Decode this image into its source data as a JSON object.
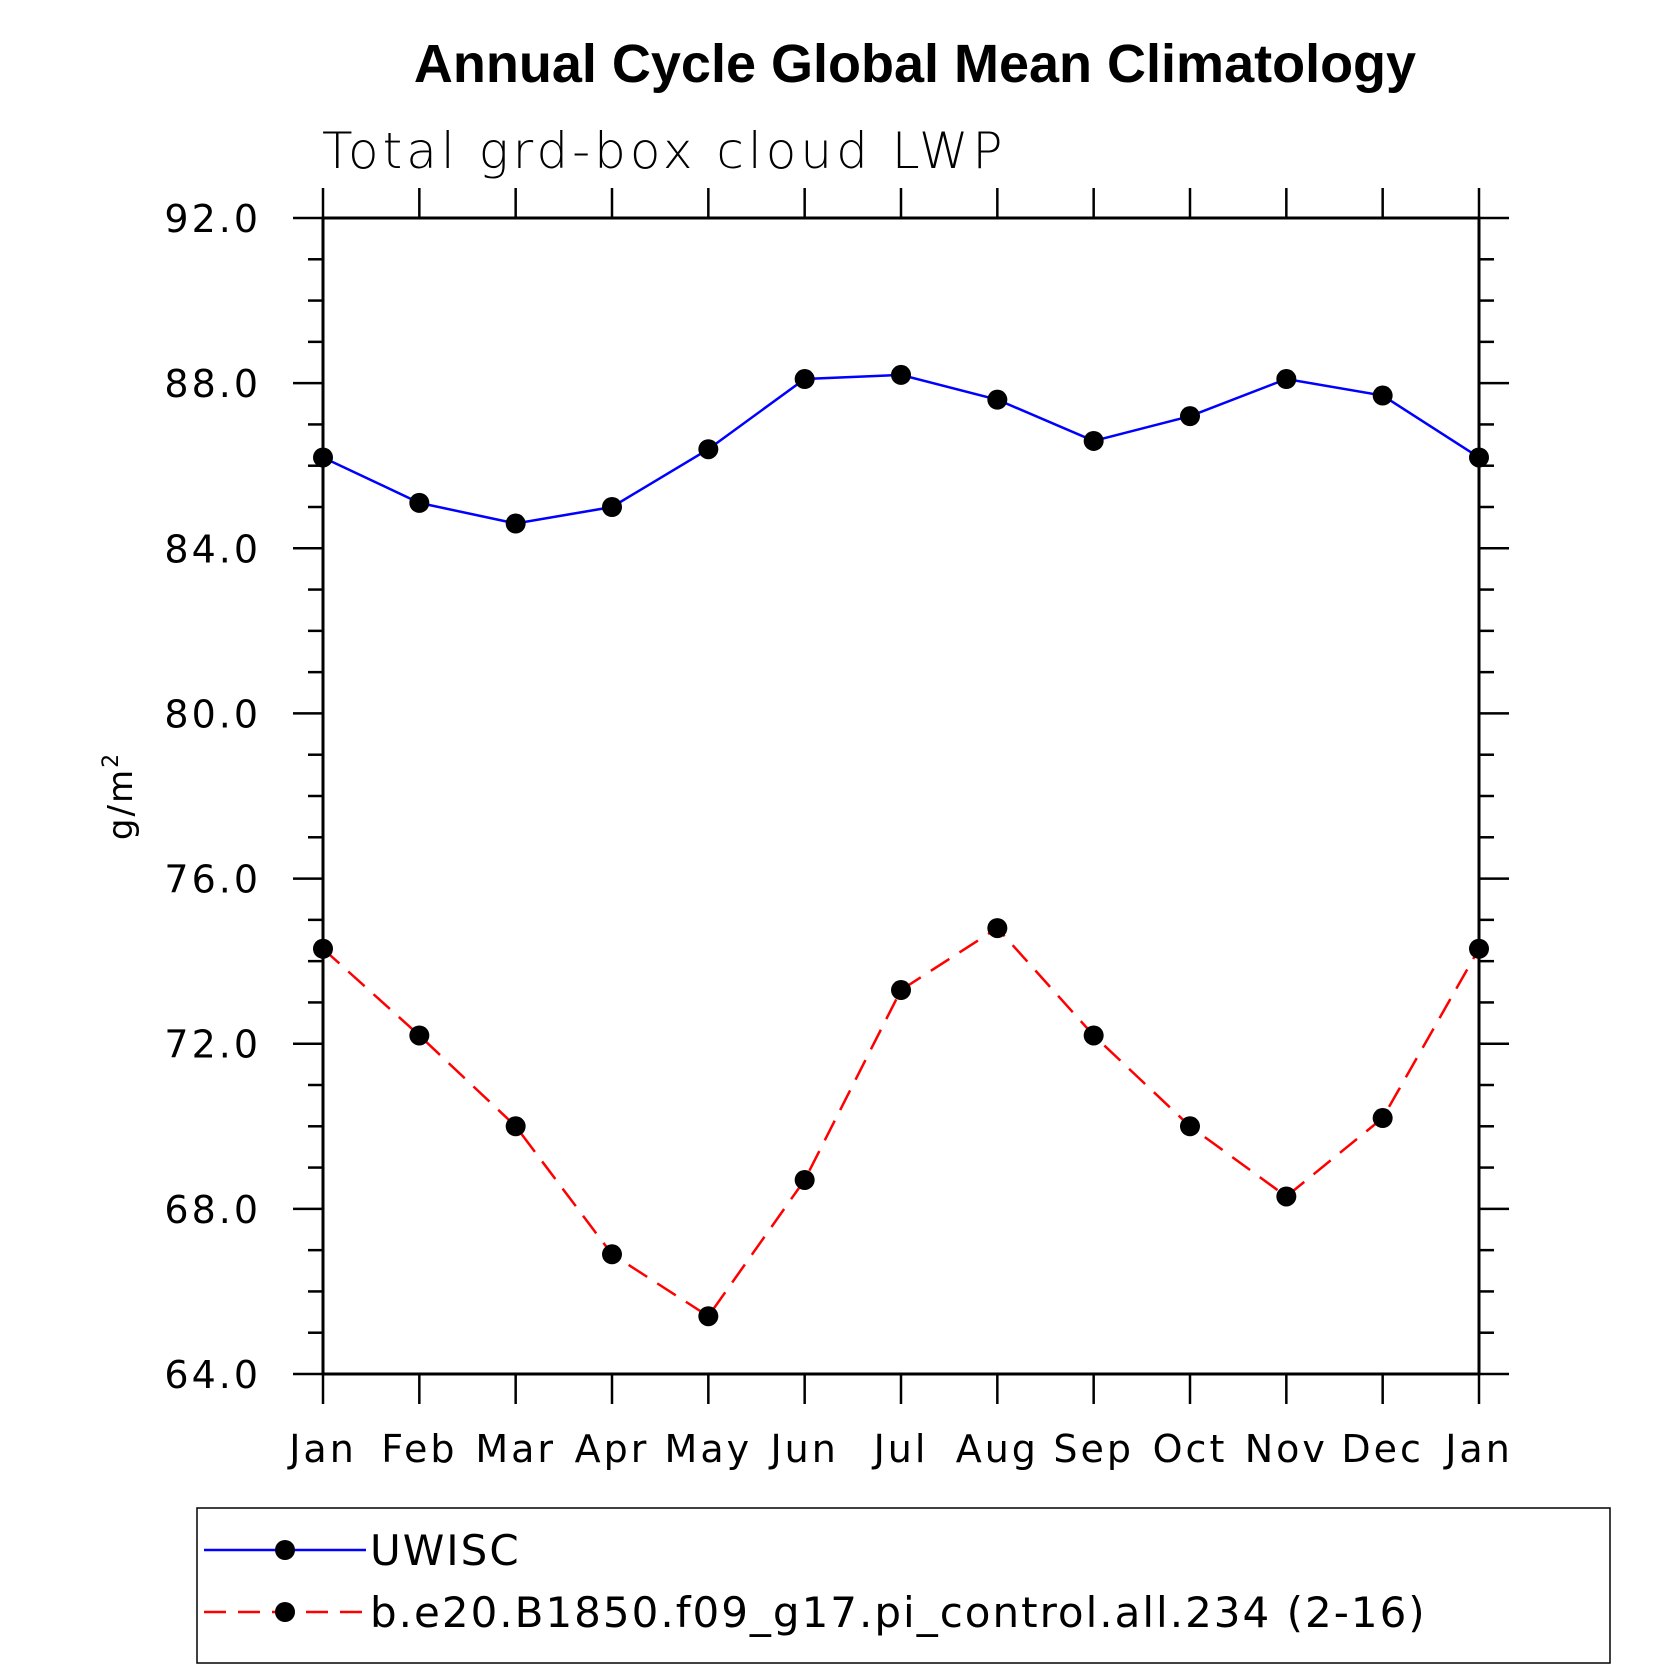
{
  "chart_data": {
    "type": "line",
    "title": "Annual Cycle Global Mean Climatology",
    "subtitle": "Total grd-box cloud LWP",
    "ylabel": "g/m",
    "ylabel_sup": "2",
    "categories": [
      "Jan",
      "Feb",
      "Mar",
      "Apr",
      "May",
      "Jun",
      "Jul",
      "Aug",
      "Sep",
      "Oct",
      "Nov",
      "Dec",
      "Jan"
    ],
    "ylim": [
      64.0,
      92.0
    ],
    "yticks": [
      "64.0",
      "68.0",
      "72.0",
      "76.0",
      "80.0",
      "84.0",
      "88.0",
      "92.0"
    ],
    "yminor_step": 1.0,
    "grid": false,
    "legend_position": "bottom",
    "series": [
      {
        "name": "UWISC",
        "color": "#0000ff",
        "line_style": "solid",
        "marker": "filled-circle",
        "values": [
          86.2,
          85.1,
          84.6,
          85.0,
          86.4,
          88.1,
          88.2,
          87.6,
          86.6,
          87.2,
          88.1,
          87.7,
          86.2
        ]
      },
      {
        "name": "b.e20.B1850.f09_g17.pi_control.all.234 (2-16)",
        "color": "#ff0000",
        "line_style": "dashed",
        "marker": "filled-circle",
        "values": [
          74.3,
          72.2,
          70.0,
          66.9,
          65.4,
          68.7,
          73.3,
          74.8,
          72.2,
          70.0,
          68.3,
          70.2,
          74.3
        ]
      }
    ]
  }
}
